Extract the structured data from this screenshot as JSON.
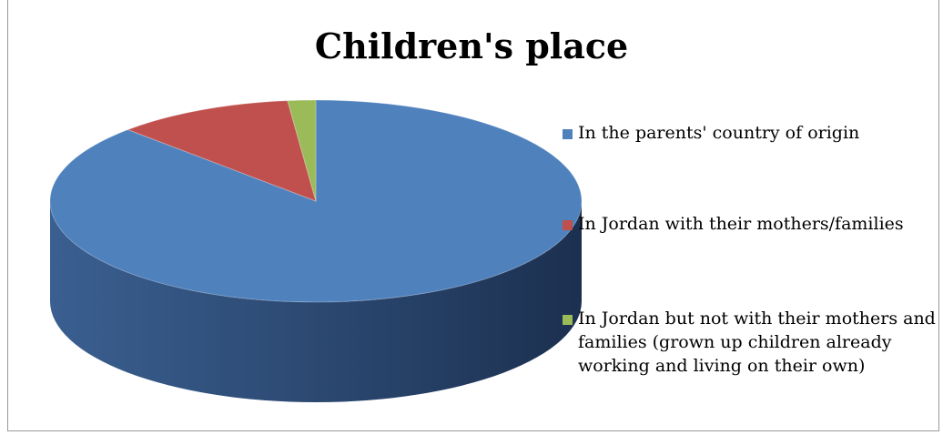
{
  "chart_data": {
    "type": "pie",
    "title": "Children's place",
    "legend_position": "right",
    "slices": [
      {
        "label": "In the parents' country of origin",
        "value": 87.5,
        "color": "#4F81BD"
      },
      {
        "label": "In Jordan with their mothers/families",
        "value": 10.8,
        "color": "#C0504D"
      },
      {
        "label": "In Jordan but not with their mothers and families (grown up children already working and living on their own)",
        "value": 1.7,
        "color": "#9BBB59"
      }
    ]
  }
}
